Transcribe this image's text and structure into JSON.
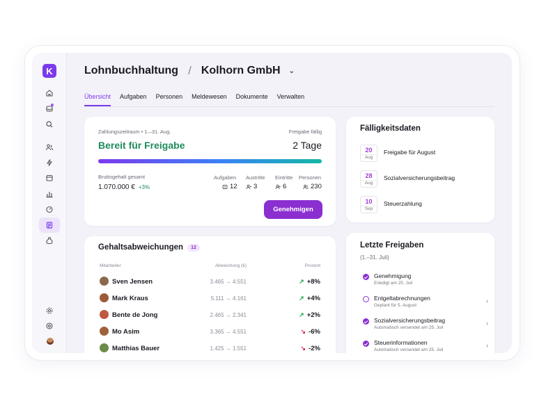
{
  "app": {
    "logo_letter": "K",
    "accent": "#8b2fd1"
  },
  "header": {
    "title": "Lohnbuchhaltung",
    "separator": "/",
    "company": "Kolhorn GmbH"
  },
  "tabs": [
    {
      "label": "Übersicht",
      "active": true
    },
    {
      "label": "Aufgaben"
    },
    {
      "label": "Personen"
    },
    {
      "label": "Meldewesen"
    },
    {
      "label": "Dokumente"
    },
    {
      "label": "Verwalten"
    }
  ],
  "payroll": {
    "period": "Zahlungszeitraum • 1.–31. Aug.",
    "due_label": "Freigabe fällig",
    "status": "Bereit für Freigabe",
    "days": "2 Tage",
    "gross_label": "Bruttogehalt gesamt",
    "gross_value": "1.070.000 €",
    "gross_change": "+3%",
    "stats": [
      {
        "label": "Aufgaben",
        "value": "12",
        "icon": "task-icon"
      },
      {
        "label": "Austritte",
        "value": "3",
        "icon": "person-exit-icon"
      },
      {
        "label": "Eintritte",
        "value": "6",
        "icon": "person-add-icon"
      },
      {
        "label": "Personen",
        "value": "230",
        "icon": "people-icon"
      }
    ],
    "approve_label": "Genehmigen"
  },
  "deadlines": {
    "title": "Fälligkeitsdaten",
    "items": [
      {
        "day": "20",
        "month": "Aug",
        "label": "Freigabe für August"
      },
      {
        "day": "28",
        "month": "Aug",
        "label": "Sozialversicherungsbeitrag"
      },
      {
        "day": "10",
        "month": "Sep",
        "label": "Steuerzahlung"
      }
    ]
  },
  "deviations": {
    "title": "Gehaltsabweichungen",
    "count": "12",
    "col_employee": "Mitarbeiter",
    "col_deviation": "Abweichung (€)",
    "col_percent": "Prozent",
    "rows": [
      {
        "name": "Sven Jensen",
        "deviation": "3.465 → 4.551",
        "percent": "+8%",
        "dir": "up"
      },
      {
        "name": "Mark Kraus",
        "deviation": "5.111 → 4.161",
        "percent": "+4%",
        "dir": "up"
      },
      {
        "name": "Bente de Jong",
        "deviation": "2.465 → 2.341",
        "percent": "+2%",
        "dir": "up"
      },
      {
        "name": "Mo Asim",
        "deviation": "3.365 → 4.551",
        "percent": "-6%",
        "dir": "down"
      },
      {
        "name": "Matthias Bauer",
        "deviation": "1.425 → 1.551",
        "percent": "-2%",
        "dir": "down"
      }
    ]
  },
  "releases": {
    "title": "Letzte Freigaben",
    "period": "(1.–31. Juli)",
    "items": [
      {
        "title": "Genehmigung",
        "sub": "Erledigt am 25. Juli",
        "status": "done"
      },
      {
        "title": "Entgeltabrechnungen",
        "sub": "Geplant für 5. August",
        "status": "scheduled"
      },
      {
        "title": "Sozialversicherungsbeitrag",
        "sub": "Automatisch versendet am 25. Juli",
        "status": "done"
      },
      {
        "title": "Steuerinformationen",
        "sub": "Automatisch versendet am 25. Juli",
        "status": "done"
      }
    ]
  }
}
